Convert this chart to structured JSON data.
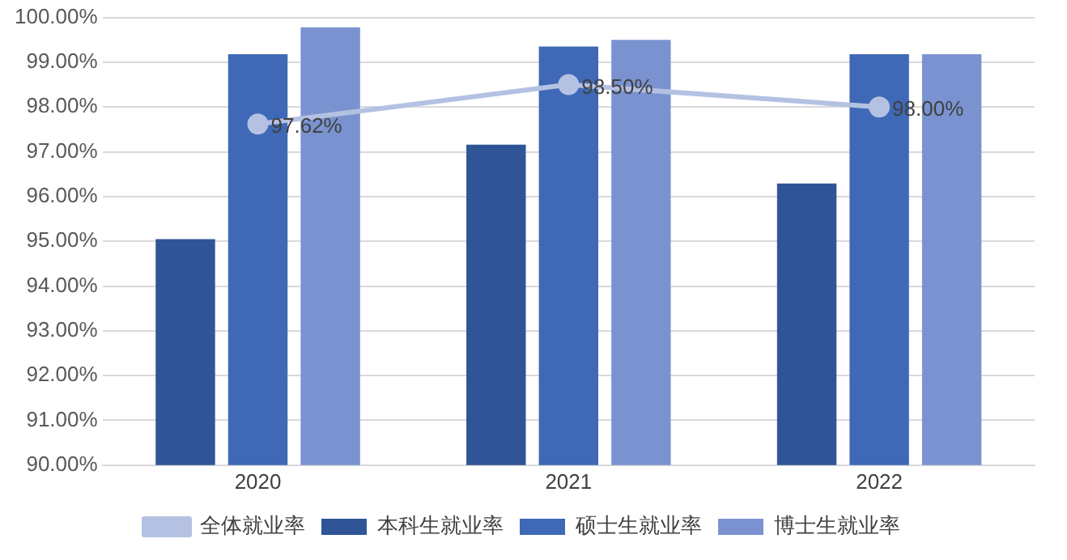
{
  "chart_data": {
    "type": "bar",
    "categories": [
      "2020",
      "2021",
      "2022"
    ],
    "series": [
      {
        "name": "本科生就业率",
        "color": "#2f5597",
        "values": [
          95.05,
          97.16,
          96.29
        ]
      },
      {
        "name": "硕士生就业率",
        "color": "#3f69b7",
        "values": [
          99.18,
          99.35,
          99.18
        ]
      },
      {
        "name": "博士生就业率",
        "color": "#7a93d0",
        "values": [
          99.78,
          99.5,
          99.18
        ]
      },
      {
        "name": "全体就业率",
        "type": "line",
        "color": "#b4c1e2",
        "marker": "circle",
        "values": [
          97.62,
          98.5,
          98.0
        ],
        "value_labels": [
          "97.62%",
          "98.50%",
          "98.00%"
        ]
      }
    ],
    "ylim": [
      90,
      100
    ],
    "yticks": [
      {
        "value": 90,
        "label": "90.00%"
      },
      {
        "value": 91,
        "label": "91.00%"
      },
      {
        "value": 92,
        "label": "92.00%"
      },
      {
        "value": 93,
        "label": "93.00%"
      },
      {
        "value": 94,
        "label": "94.00%"
      },
      {
        "value": 95,
        "label": "95.00%"
      },
      {
        "value": 96,
        "label": "96.00%"
      },
      {
        "value": 97,
        "label": "97.00%"
      },
      {
        "value": 98,
        "label": "98.00%"
      },
      {
        "value": 99,
        "label": "99.00%"
      },
      {
        "value": 100,
        "label": "100.00%"
      }
    ],
    "grid": "y",
    "legend": "bottom"
  }
}
